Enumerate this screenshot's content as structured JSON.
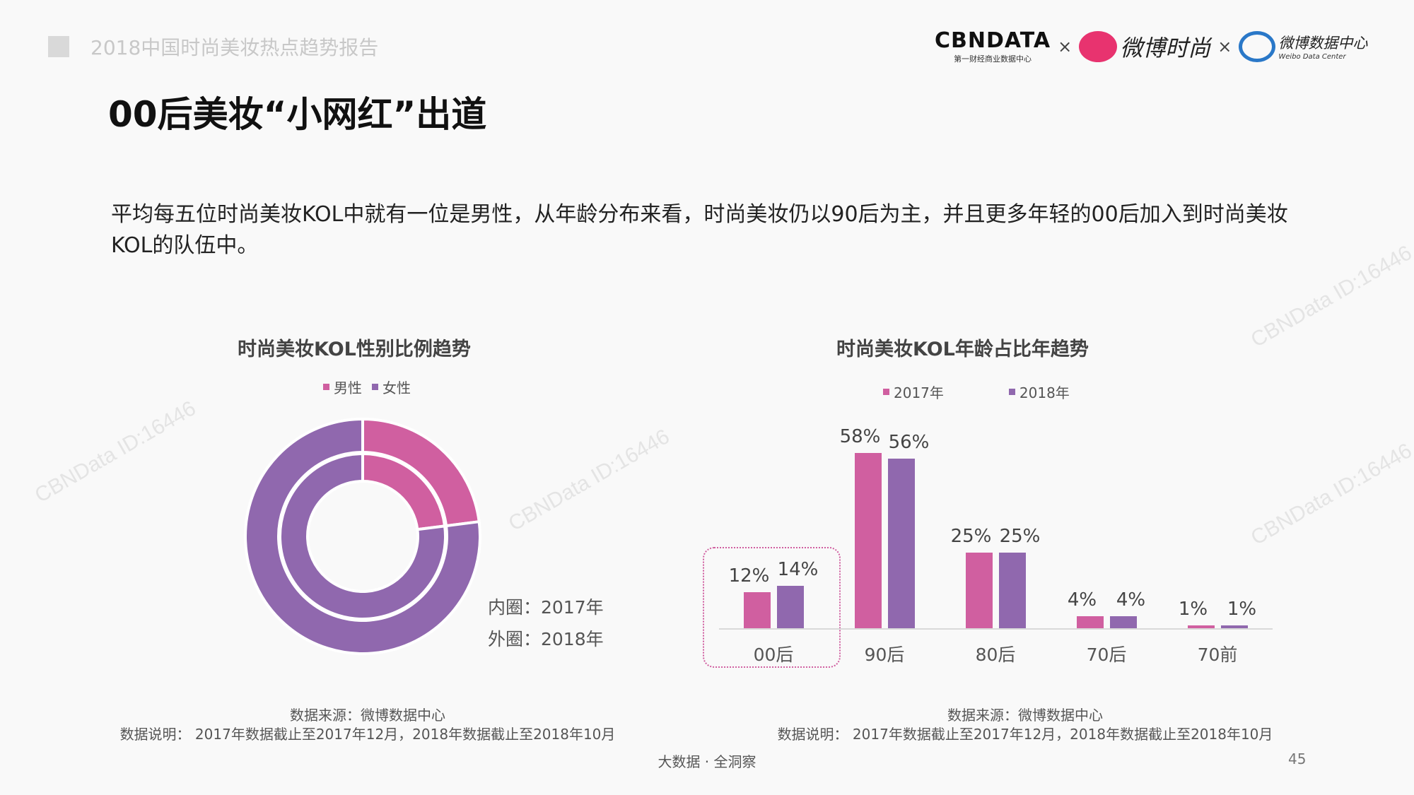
{
  "header": {
    "report_title": "2018中国时尚美妆热点趋势报告"
  },
  "logos": {
    "cbndata": "CBNDATA",
    "cbndata_sub": "第一财经商业数据中心",
    "weibo_fashion": "微博时尚",
    "weibo_data": "微博数据中心",
    "weibo_data_sub": "Weibo Data Center",
    "times": "×"
  },
  "page_title": "00后美妆“小网红”出道",
  "paragraph": "平均每五位时尚美妆KOL中就有一位是男性，从年龄分布来看，时尚美妆仍以90后为主，并且更多年轻的00后加入到时尚美妆KOL的队伍中。",
  "watermark": "CBNData ID:16446",
  "colors": {
    "pink": "#d05fa0",
    "purple": "#9068ae"
  },
  "chart_data": [
    {
      "type": "pie",
      "title": "时尚美妆KOL性别比例趋势",
      "legend": [
        "男性",
        "女性"
      ],
      "rings": [
        {
          "name": "内圈：2017年",
          "values": [
            23,
            77
          ]
        },
        {
          "name": "外圈：2018年",
          "values": [
            23,
            77
          ]
        }
      ],
      "ring_labels": [
        "内圈：2017年",
        "外圈：2018年"
      ],
      "source": "数据来源：微博数据中心",
      "note": "数据说明： 2017年数据截止至2017年12月，2018年数据截止至2018年10月"
    },
    {
      "type": "bar",
      "title": "时尚美妆KOL年龄占比年趋势",
      "categories": [
        "00后",
        "90后",
        "80后",
        "70后",
        "70前"
      ],
      "series": [
        {
          "name": "2017年",
          "values": [
            12,
            58,
            25,
            4,
            1
          ]
        },
        {
          "name": "2018年",
          "values": [
            14,
            56,
            25,
            4,
            1
          ]
        }
      ],
      "data_labels": [
        [
          "12%",
          "58%",
          "25%",
          "4%",
          "1%"
        ],
        [
          "14%",
          "56%",
          "25%",
          "4%",
          "1%"
        ]
      ],
      "highlight": "00后",
      "source": "数据来源：微博数据中心",
      "note": "数据说明： 2017年数据截止至2017年12月，2018年数据截止至2018年10月"
    }
  ],
  "footer": {
    "slogan": "大数据 · 全洞察",
    "page": "45"
  }
}
